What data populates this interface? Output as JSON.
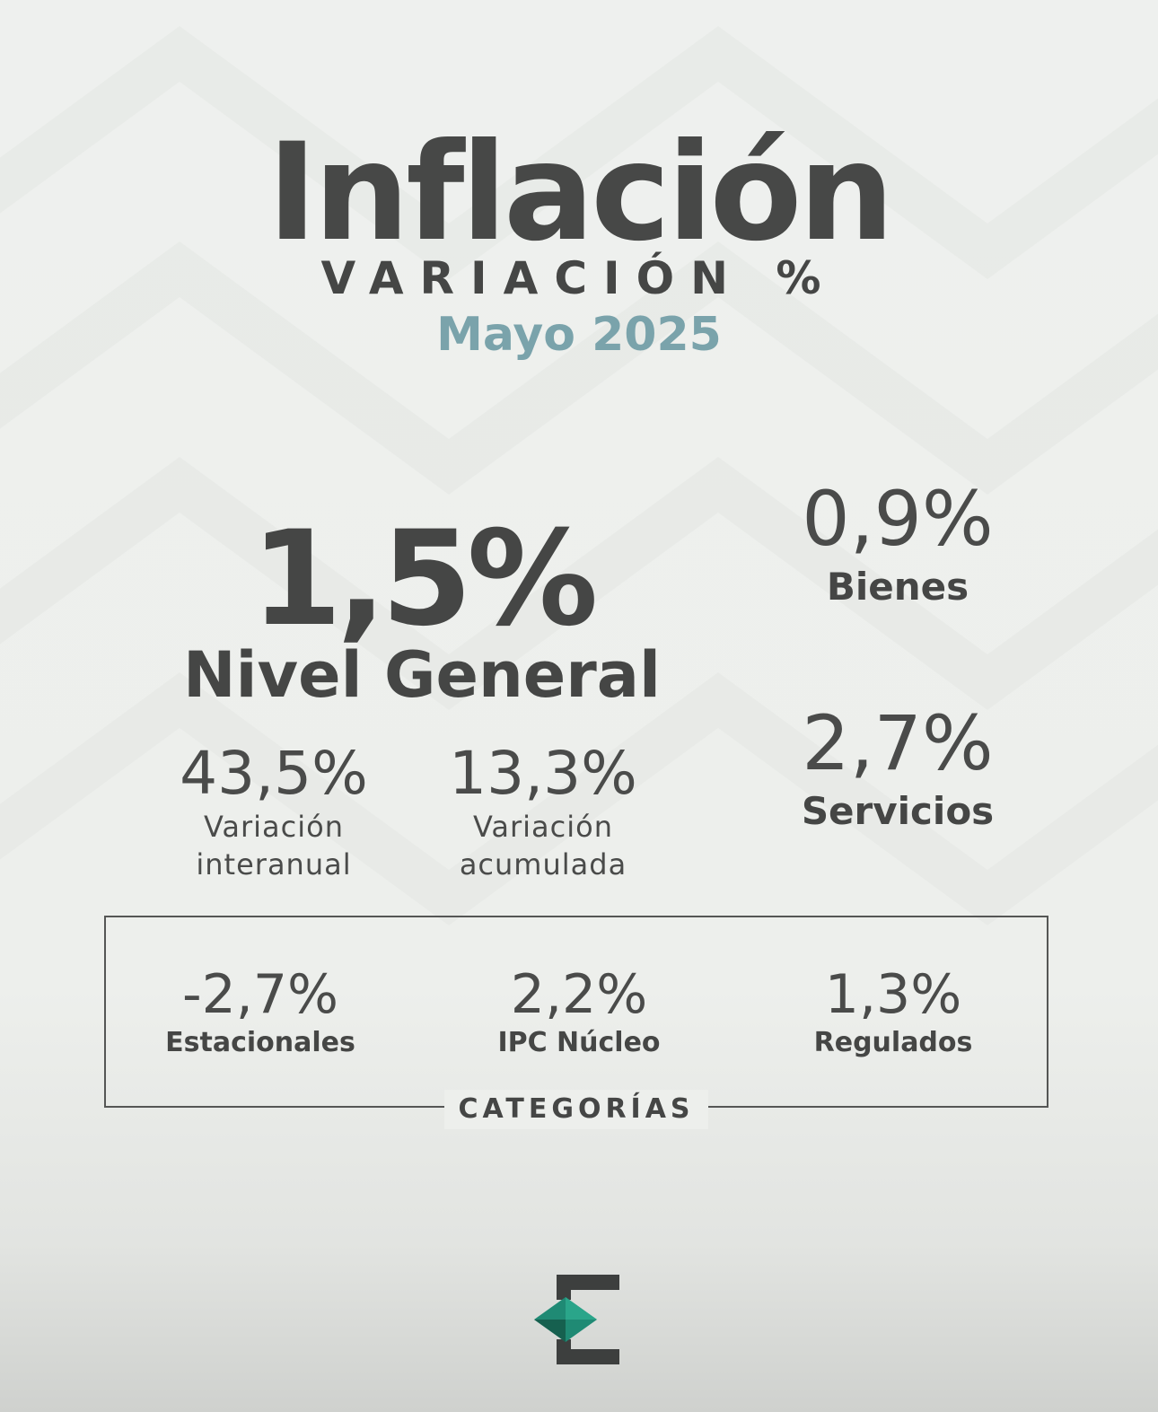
{
  "header": {
    "title": "Inflación",
    "subtitle": "VARIACIÓN %",
    "period": "Mayo 2025"
  },
  "main": {
    "value": "1,5%",
    "label": "Nivel General"
  },
  "variations": [
    {
      "value": "43,5%",
      "label_line1": "Variación",
      "label_line2": "interanual"
    },
    {
      "value": "13,3%",
      "label_line1": "Variación",
      "label_line2": "acumulada"
    }
  ],
  "breakdown": [
    {
      "value": "0,9%",
      "label": "Bienes"
    },
    {
      "value": "2,7%",
      "label": "Servicios"
    }
  ],
  "categories": {
    "title": "CATEGORÍAS",
    "items": [
      {
        "value": "-2,7%",
        "label": "Estacionales"
      },
      {
        "value": "2,2%",
        "label": "IPC Núcleo"
      },
      {
        "value": "1,3%",
        "label": "Regulados"
      }
    ]
  },
  "logo": {
    "icon": "brand-e-logo",
    "colors": [
      "#1f8a74",
      "#2f6b62",
      "#3d3f3e"
    ]
  }
}
